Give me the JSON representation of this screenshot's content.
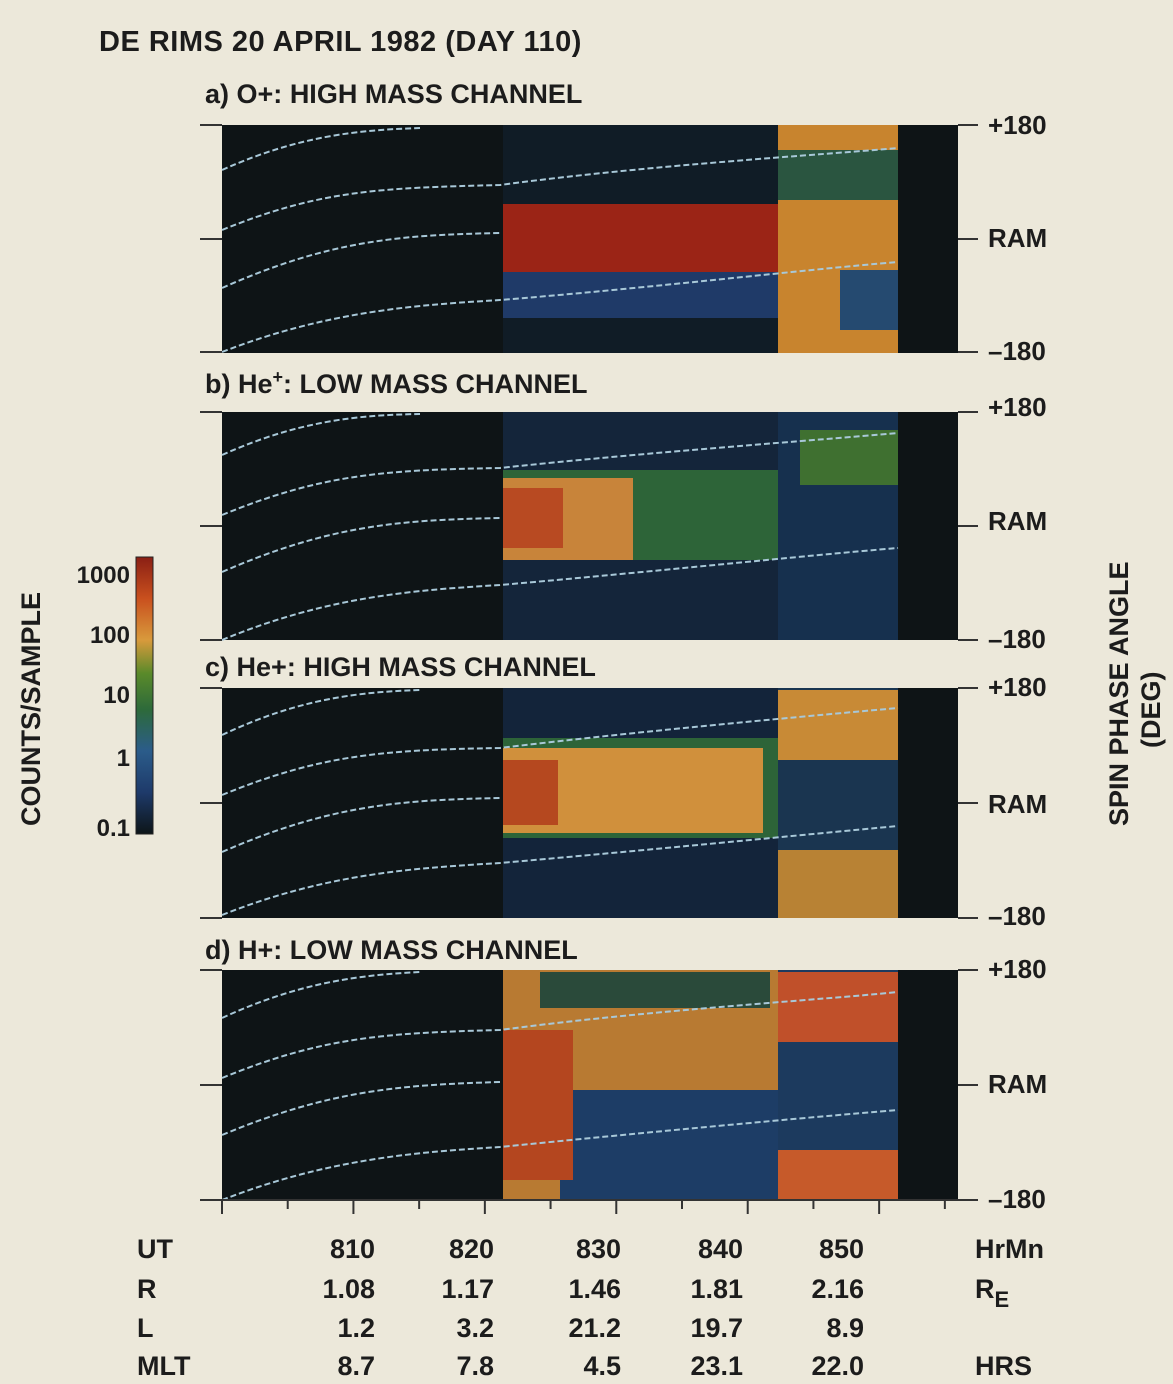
{
  "title": "DE RIMS  20 APRIL 1982 (DAY 110)",
  "chart_data": {
    "type": "heatmap",
    "panels": [
      {
        "label": "a)",
        "species": "O+:",
        "sup": "",
        "channel": "HIGH MASS CHANNEL"
      },
      {
        "label": "b)",
        "species": "He",
        "sup": "+",
        "channel": ":  LOW MASS CHANNEL"
      },
      {
        "label": "c)",
        "species": "He+:",
        "sup": "",
        "channel": "HIGH MASS CHANNEL"
      },
      {
        "label": "d)",
        "species": "H+:",
        "sup": "",
        "channel": "LOW MASS CHANNEL"
      }
    ],
    "y_ticks": {
      "top": "+180",
      "middle": "RAM",
      "bottom": "–180"
    },
    "y_axis_label": [
      "SPIN PHASE ANGLE",
      "(DEG)"
    ],
    "y_range": [
      -180,
      180
    ],
    "x_range": [
      800,
      856
    ],
    "colorbar": {
      "label": "COUNTS/SAMPLE",
      "ticks": [
        "1000",
        "100",
        "10",
        "1",
        "0.1"
      ],
      "scale": "log",
      "colors": [
        "#0d1518",
        "#1e3a6a",
        "#2b5c8a",
        "#2d6a3a",
        "#5a8a2a",
        "#d89a3c",
        "#c9501e",
        "#8a1f14"
      ]
    },
    "ephemeris_rows": [
      {
        "label": "UT",
        "values": [
          "810",
          "820",
          "830",
          "840",
          "850"
        ],
        "unit": "HrMn",
        "unit_sub": ""
      },
      {
        "label": "R",
        "values": [
          "1.08",
          "1.17",
          "1.46",
          "1.81",
          "2.16"
        ],
        "unit": "R",
        "unit_sub": "E"
      },
      {
        "label": "L",
        "values": [
          "1.2",
          "3.2",
          "21.2",
          "19.7",
          "8.9"
        ],
        "unit": "",
        "unit_sub": ""
      },
      {
        "label": "MLT",
        "values": [
          "8.7",
          "7.8",
          "4.5",
          "23.1",
          "22.0"
        ],
        "unit": "HRS",
        "unit_sub": ""
      }
    ]
  }
}
